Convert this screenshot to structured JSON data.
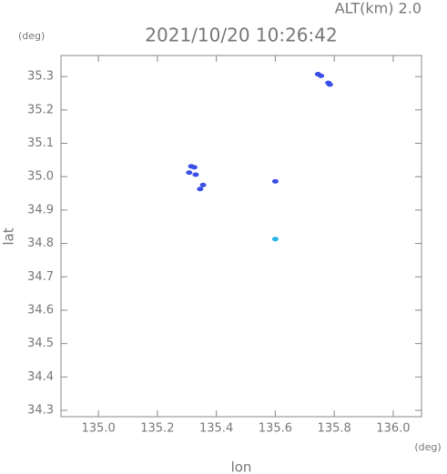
{
  "chart_data": {
    "type": "scatter",
    "title": "2021/10/20 10:26:42",
    "corner_label": "ALT(km) 2.0",
    "y_unit": "(deg)",
    "x_unit": "(deg)",
    "xlabel": "lon",
    "ylabel": "lat",
    "xlim": [
      134.873,
      136.096
    ],
    "ylim": [
      34.281,
      35.363
    ],
    "xticks": [
      {
        "value": 135.0,
        "label": "135.0"
      },
      135.2,
      135.4,
      135.6,
      135.8,
      {
        "value": 136.0,
        "label": "136.0"
      }
    ],
    "yticks": [
      34.3,
      34.4,
      34.5,
      34.6,
      34.7,
      34.8,
      34.9,
      {
        "value": 35.0,
        "label": "35.0"
      },
      35.1,
      35.2,
      35.3
    ],
    "grid": false,
    "series": [
      {
        "color": "#3a4fe6",
        "x": [
          135.745,
          135.755,
          135.78,
          135.785,
          135.315,
          135.325,
          135.308,
          135.33,
          135.355,
          135.345,
          135.6
        ],
        "y": [
          35.307,
          35.302,
          35.281,
          35.276,
          35.031,
          35.028,
          35.012,
          35.006,
          34.975,
          34.963,
          34.986
        ]
      },
      {
        "color": "#29b6e8",
        "x": [
          135.6
        ],
        "y": [
          34.813
        ]
      }
    ]
  }
}
